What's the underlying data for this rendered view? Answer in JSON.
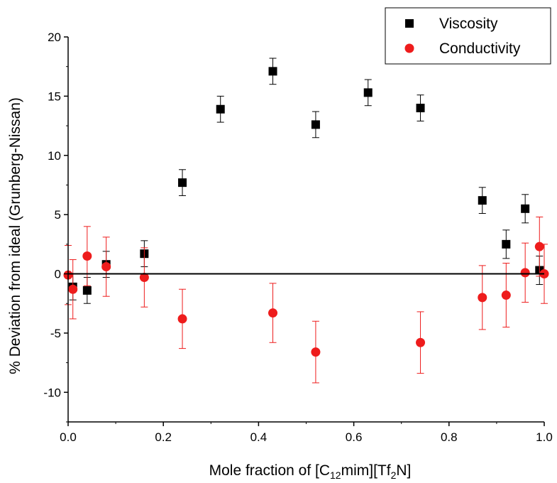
{
  "chart_data": {
    "type": "scatter",
    "title": "",
    "xlabel": "Mole fraction of [C12mim][Tf2N]",
    "xlabel_parts": {
      "prefix": "Mole fraction of [C",
      "sub1": "12",
      "mid": "mim][Tf",
      "sub2": "2",
      "suffix": "N]"
    },
    "ylabel": "% Deviation from ideal (Grunberg-Nissan)",
    "xlim": [
      0.0,
      1.0
    ],
    "ylim": [
      -12.5,
      20.0
    ],
    "xticks": [
      0.0,
      0.2,
      0.4,
      0.6,
      0.8,
      1.0
    ],
    "xtick_labels": [
      "0.0",
      "0.2",
      "0.4",
      "0.6",
      "0.8",
      "1.0"
    ],
    "yticks": [
      -10,
      -5,
      0,
      5,
      10,
      15,
      20
    ],
    "ytick_labels": [
      "-10",
      "-5",
      "0",
      "5",
      "10",
      "15",
      "20"
    ],
    "reference_line_y": 0,
    "grid": false,
    "legend_position": "top-right",
    "series": [
      {
        "name": "Viscosity",
        "marker": "square",
        "color": "#000000",
        "points": [
          {
            "x": 0.01,
            "y": -1.1,
            "err": 1.1
          },
          {
            "x": 0.04,
            "y": -1.4,
            "err": 1.1
          },
          {
            "x": 0.08,
            "y": 0.8,
            "err": 1.1
          },
          {
            "x": 0.16,
            "y": 1.7,
            "err": 1.1
          },
          {
            "x": 0.24,
            "y": 7.7,
            "err": 1.1
          },
          {
            "x": 0.32,
            "y": 13.9,
            "err": 1.1
          },
          {
            "x": 0.43,
            "y": 17.1,
            "err": 1.1
          },
          {
            "x": 0.52,
            "y": 12.6,
            "err": 1.1
          },
          {
            "x": 0.63,
            "y": 15.3,
            "err": 1.1
          },
          {
            "x": 0.74,
            "y": 14.0,
            "err": 1.1
          },
          {
            "x": 0.87,
            "y": 6.2,
            "err": 1.1
          },
          {
            "x": 0.92,
            "y": 2.5,
            "err": 1.2
          },
          {
            "x": 0.96,
            "y": 5.5,
            "err": 1.2
          },
          {
            "x": 0.99,
            "y": 0.3,
            "err": 1.2
          }
        ]
      },
      {
        "name": "Conductivity",
        "marker": "circle",
        "color": "#ee1c1c",
        "points": [
          {
            "x": 0.0,
            "y": -0.1,
            "err": 2.5
          },
          {
            "x": 0.01,
            "y": -1.3,
            "err": 2.5
          },
          {
            "x": 0.04,
            "y": 1.5,
            "err": 2.5
          },
          {
            "x": 0.08,
            "y": 0.6,
            "err": 2.5
          },
          {
            "x": 0.16,
            "y": -0.3,
            "err": 2.5
          },
          {
            "x": 0.24,
            "y": -3.8,
            "err": 2.5
          },
          {
            "x": 0.43,
            "y": -3.3,
            "err": 2.5
          },
          {
            "x": 0.52,
            "y": -6.6,
            "err": 2.6
          },
          {
            "x": 0.74,
            "y": -5.8,
            "err": 2.6
          },
          {
            "x": 0.87,
            "y": -2.0,
            "err": 2.7
          },
          {
            "x": 0.92,
            "y": -1.8,
            "err": 2.7
          },
          {
            "x": 0.96,
            "y": 0.1,
            "err": 2.5
          },
          {
            "x": 0.99,
            "y": 2.3,
            "err": 2.5
          },
          {
            "x": 1.0,
            "y": 0.0,
            "err": 2.5
          }
        ]
      }
    ]
  }
}
